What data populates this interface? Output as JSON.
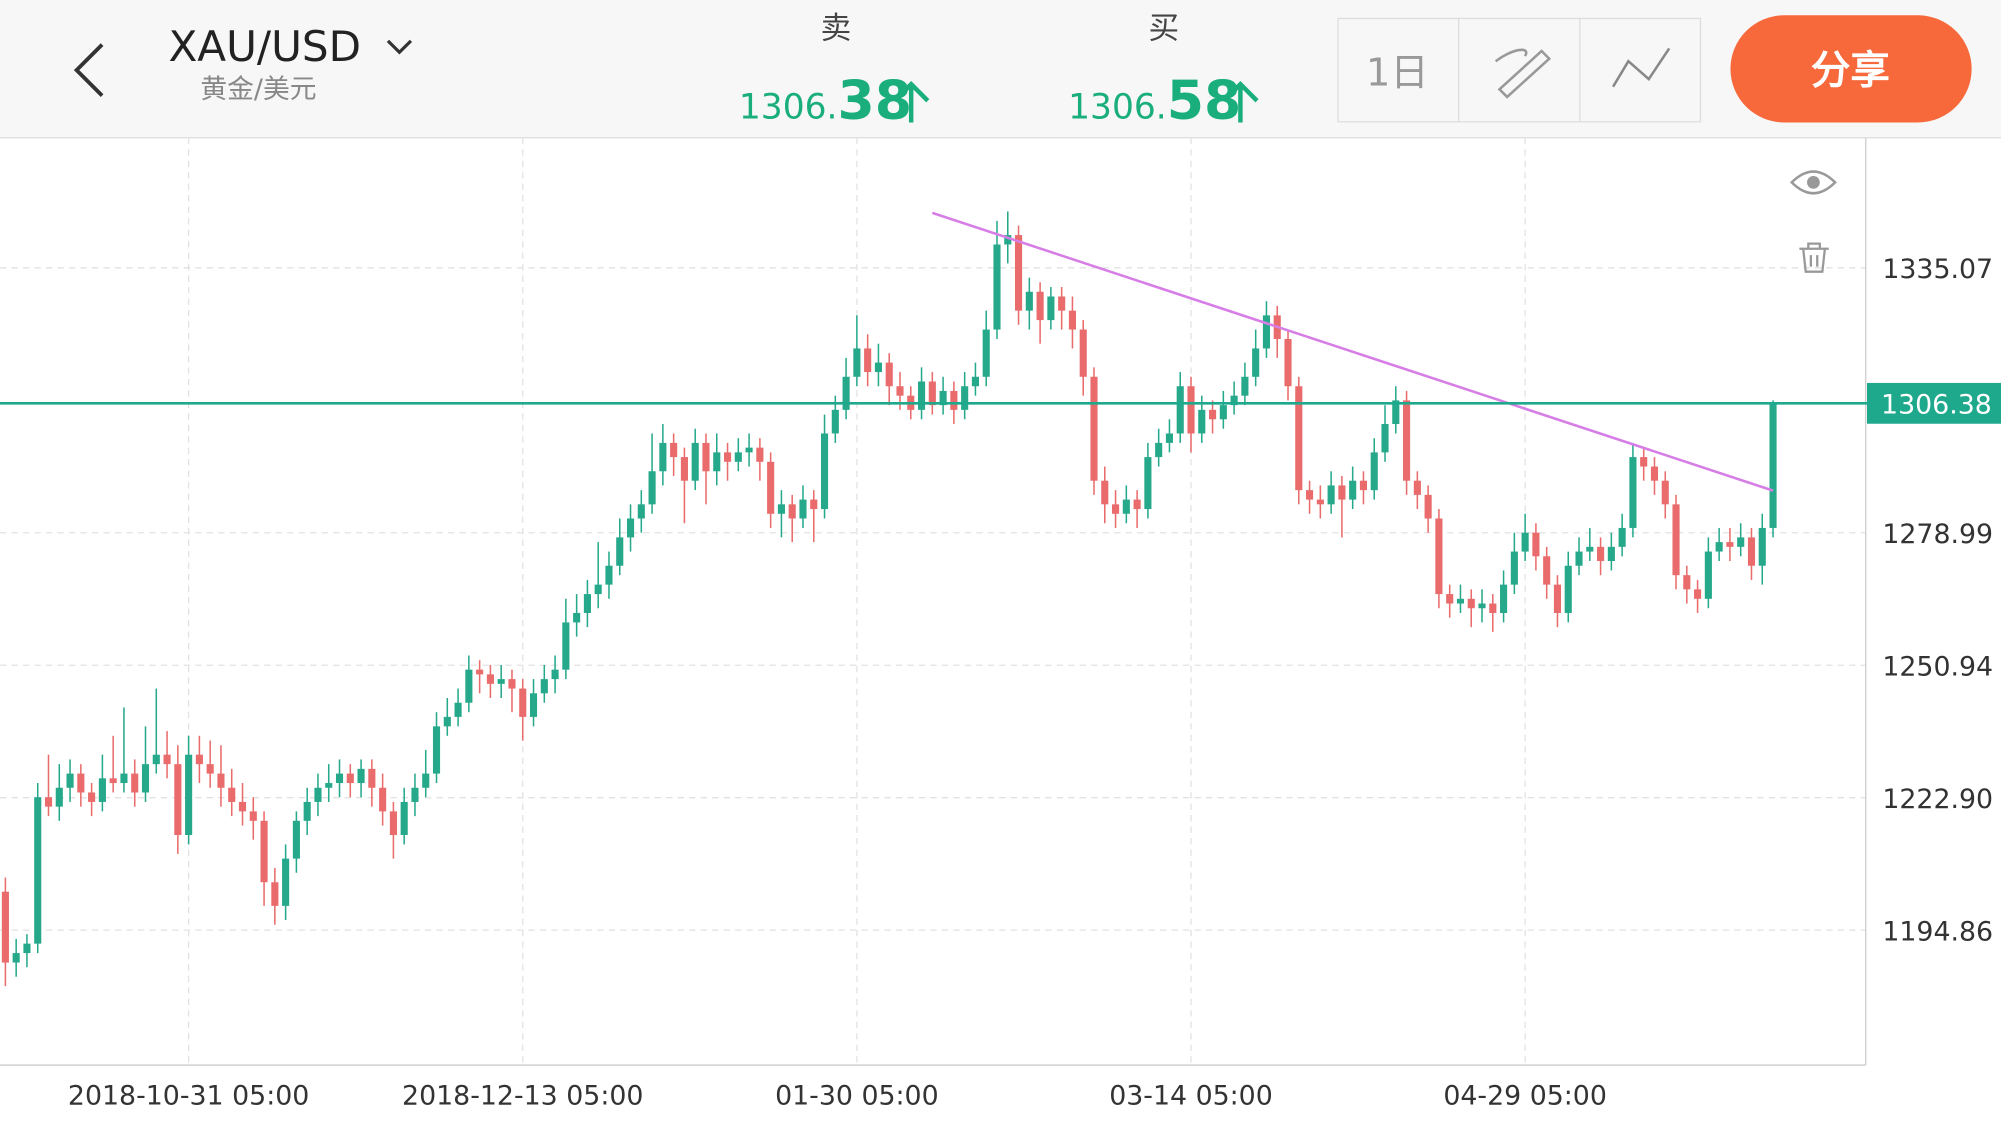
{
  "header": {
    "symbol": "XAU/USD",
    "subtitle": "黄金/美元",
    "sell": {
      "label": "卖",
      "int": "1306.",
      "dec": "38"
    },
    "buy": {
      "label": "买",
      "int": "1306.",
      "dec": "58"
    },
    "period": "1日",
    "share": "分享"
  },
  "chart_data": {
    "type": "candlestick",
    "up_color": "#26a98b",
    "down_color": "#ea6b6b",
    "grid": true,
    "ylim": [
      1166.3,
      1362.6
    ],
    "yticks": [
      1194.86,
      {
        "value": 1222.9,
        "label": "1222.90"
      },
      1250.94,
      1278.99,
      1335.07
    ],
    "xlim": [
      -0.5,
      172.6
    ],
    "xticks": [
      {
        "value": 17,
        "label": "2018-10-31 05:00"
      },
      {
        "value": 48,
        "label": "2018-12-13 05:00"
      },
      {
        "value": 79,
        "label": "01-30 05:00"
      },
      {
        "value": 110,
        "label": "03-14 05:00"
      },
      {
        "value": 141,
        "label": "04-29 05:00"
      }
    ],
    "last_price": 1306.38,
    "last_price_color": "#1fa98c",
    "trendline": {
      "x": [
        86,
        164
      ],
      "y": [
        1346.7,
        1287.9
      ],
      "color": "#d77ee6"
    },
    "candles": [
      [
        1203,
        1206,
        1183,
        1188
      ],
      [
        1188,
        1193,
        1185,
        1190
      ],
      [
        1190,
        1194,
        1187,
        1192
      ],
      [
        1192,
        1226,
        1190,
        1223
      ],
      [
        1223,
        1232,
        1219,
        1221
      ],
      [
        1221,
        1230,
        1218,
        1225
      ],
      [
        1225,
        1231,
        1222,
        1228
      ],
      [
        1228,
        1230,
        1221,
        1224
      ],
      [
        1224,
        1226,
        1219,
        1222
      ],
      [
        1222,
        1232,
        1220,
        1227
      ],
      [
        1227,
        1236,
        1224,
        1226
      ],
      [
        1226,
        1242,
        1224,
        1228
      ],
      [
        1228,
        1231,
        1221,
        1224
      ],
      [
        1224,
        1238,
        1222,
        1230
      ],
      [
        1230,
        1246,
        1228,
        1232
      ],
      [
        1232,
        1237,
        1227,
        1230
      ],
      [
        1230,
        1234,
        1211,
        1215
      ],
      [
        1215,
        1236,
        1213,
        1232
      ],
      [
        1232,
        1236,
        1226,
        1230
      ],
      [
        1230,
        1235,
        1225,
        1228
      ],
      [
        1228,
        1234,
        1221,
        1225
      ],
      [
        1225,
        1229,
        1219,
        1222
      ],
      [
        1222,
        1226,
        1217,
        1220
      ],
      [
        1220,
        1223,
        1214,
        1218
      ],
      [
        1218,
        1220,
        1200,
        1205
      ],
      [
        1205,
        1208,
        1196,
        1200
      ],
      [
        1200,
        1213,
        1197,
        1210
      ],
      [
        1210,
        1220,
        1207,
        1218
      ],
      [
        1218,
        1225,
        1215,
        1222
      ],
      [
        1222,
        1228,
        1219,
        1225
      ],
      [
        1225,
        1230,
        1222,
        1226
      ],
      [
        1226,
        1231,
        1223,
        1228
      ],
      [
        1228,
        1230,
        1223,
        1226
      ],
      [
        1226,
        1231,
        1223,
        1229
      ],
      [
        1229,
        1231,
        1221,
        1225
      ],
      [
        1225,
        1228,
        1217,
        1220
      ],
      [
        1220,
        1222,
        1210,
        1215
      ],
      [
        1215,
        1225,
        1213,
        1222
      ],
      [
        1222,
        1228,
        1219,
        1225
      ],
      [
        1225,
        1233,
        1223,
        1228
      ],
      [
        1228,
        1241,
        1226,
        1238
      ],
      [
        1238,
        1244,
        1236,
        1240
      ],
      [
        1240,
        1246,
        1238,
        1243
      ],
      [
        1243,
        1253,
        1241,
        1250
      ],
      [
        1250,
        1252,
        1245,
        1249
      ],
      [
        1249,
        1251,
        1244,
        1247
      ],
      [
        1247,
        1251,
        1244,
        1248
      ],
      [
        1248,
        1250,
        1241,
        1246
      ],
      [
        1246,
        1248,
        1235,
        1240
      ],
      [
        1240,
        1248,
        1238,
        1245
      ],
      [
        1245,
        1251,
        1243,
        1248
      ],
      [
        1248,
        1253,
        1245,
        1250
      ],
      [
        1250,
        1265,
        1248,
        1260
      ],
      [
        1260,
        1266,
        1257,
        1262
      ],
      [
        1262,
        1269,
        1259,
        1266
      ],
      [
        1266,
        1277,
        1263,
        1268
      ],
      [
        1268,
        1275,
        1265,
        1272
      ],
      [
        1272,
        1282,
        1270,
        1278
      ],
      [
        1278,
        1285,
        1275,
        1282
      ],
      [
        1282,
        1288,
        1279,
        1285
      ],
      [
        1285,
        1300,
        1283,
        1292
      ],
      [
        1292,
        1302,
        1289,
        1298
      ],
      [
        1298,
        1300,
        1291,
        1295
      ],
      [
        1295,
        1297,
        1281,
        1290
      ],
      [
        1290,
        1301,
        1288,
        1298
      ],
      [
        1298,
        1300,
        1285,
        1292
      ],
      [
        1292,
        1300,
        1289,
        1296
      ],
      [
        1296,
        1298,
        1290,
        1294
      ],
      [
        1294,
        1299,
        1292,
        1296
      ],
      [
        1296,
        1300,
        1293,
        1297
      ],
      [
        1297,
        1299,
        1290,
        1294
      ],
      [
        1294,
        1296,
        1280,
        1283
      ],
      [
        1283,
        1288,
        1278,
        1285
      ],
      [
        1285,
        1287,
        1277,
        1282
      ],
      [
        1282,
        1289,
        1280,
        1286
      ],
      [
        1286,
        1288,
        1277,
        1284
      ],
      [
        1284,
        1304,
        1282,
        1300
      ],
      [
        1300,
        1308,
        1298,
        1305
      ],
      [
        1305,
        1316,
        1303,
        1312
      ],
      [
        1312,
        1325,
        1310,
        1318
      ],
      [
        1318,
        1321,
        1310,
        1313
      ],
      [
        1313,
        1319,
        1310,
        1315
      ],
      [
        1315,
        1317,
        1306,
        1310
      ],
      [
        1310,
        1313,
        1305,
        1308
      ],
      [
        1308,
        1310,
        1303,
        1305
      ],
      [
        1305,
        1314,
        1303,
        1311
      ],
      [
        1311,
        1313,
        1304,
        1306
      ],
      [
        1306,
        1312,
        1304,
        1309
      ],
      [
        1309,
        1311,
        1302,
        1305
      ],
      [
        1305,
        1313,
        1303,
        1310
      ],
      [
        1310,
        1315,
        1308,
        1312
      ],
      [
        1312,
        1326,
        1310,
        1322
      ],
      [
        1322,
        1345,
        1320,
        1340
      ],
      [
        1340,
        1347,
        1336,
        1342
      ],
      [
        1342,
        1344,
        1323,
        1326
      ],
      [
        1326,
        1333,
        1322,
        1330
      ],
      [
        1330,
        1332,
        1319,
        1324
      ],
      [
        1324,
        1331,
        1322,
        1329
      ],
      [
        1329,
        1331,
        1322,
        1326
      ],
      [
        1326,
        1329,
        1318,
        1322
      ],
      [
        1322,
        1324,
        1308,
        1312
      ],
      [
        1312,
        1314,
        1287,
        1290
      ],
      [
        1290,
        1293,
        1281,
        1285
      ],
      [
        1285,
        1288,
        1280,
        1283
      ],
      [
        1283,
        1289,
        1281,
        1286
      ],
      [
        1286,
        1288,
        1280,
        1284
      ],
      [
        1284,
        1298,
        1282,
        1295
      ],
      [
        1295,
        1301,
        1293,
        1298
      ],
      [
        1298,
        1303,
        1296,
        1300
      ],
      [
        1300,
        1313,
        1298,
        1310
      ],
      [
        1310,
        1312,
        1296,
        1300
      ],
      [
        1300,
        1308,
        1298,
        1305
      ],
      [
        1305,
        1307,
        1300,
        1303
      ],
      [
        1303,
        1309,
        1301,
        1306
      ],
      [
        1306,
        1311,
        1304,
        1308
      ],
      [
        1308,
        1315,
        1306,
        1312
      ],
      [
        1312,
        1322,
        1310,
        1318
      ],
      [
        1318,
        1328,
        1316,
        1325
      ],
      [
        1325,
        1327,
        1316,
        1320
      ],
      [
        1320,
        1322,
        1307,
        1310
      ],
      [
        1310,
        1312,
        1285,
        1288
      ],
      [
        1288,
        1290,
        1283,
        1286
      ],
      [
        1286,
        1289,
        1282,
        1285
      ],
      [
        1285,
        1292,
        1283,
        1289
      ],
      [
        1289,
        1291,
        1278,
        1286
      ],
      [
        1286,
        1293,
        1284,
        1290
      ],
      [
        1290,
        1292,
        1285,
        1288
      ],
      [
        1288,
        1299,
        1286,
        1296
      ],
      [
        1296,
        1306,
        1294,
        1302
      ],
      [
        1302,
        1310,
        1300,
        1307
      ],
      [
        1307,
        1309,
        1287,
        1290
      ],
      [
        1290,
        1292,
        1284,
        1287
      ],
      [
        1287,
        1289,
        1279,
        1282
      ],
      [
        1282,
        1284,
        1263,
        1266
      ],
      [
        1266,
        1268,
        1261,
        1264
      ],
      [
        1264,
        1268,
        1262,
        1265
      ],
      [
        1265,
        1267,
        1259,
        1263
      ],
      [
        1263,
        1267,
        1260,
        1264
      ],
      [
        1264,
        1266,
        1258,
        1262
      ],
      [
        1262,
        1271,
        1260,
        1268
      ],
      [
        1268,
        1279,
        1266,
        1275
      ],
      [
        1275,
        1283,
        1273,
        1279
      ],
      [
        1279,
        1281,
        1271,
        1274
      ],
      [
        1274,
        1276,
        1265,
        1268
      ],
      [
        1268,
        1270,
        1259,
        1262
      ],
      [
        1262,
        1275,
        1260,
        1272
      ],
      [
        1272,
        1278,
        1270,
        1275
      ],
      [
        1275,
        1280,
        1273,
        1276
      ],
      [
        1276,
        1278,
        1270,
        1273
      ],
      [
        1273,
        1279,
        1271,
        1276
      ],
      [
        1276,
        1283,
        1274,
        1280
      ],
      [
        1280,
        1298,
        1278,
        1295
      ],
      [
        1295,
        1297,
        1290,
        1293
      ],
      [
        1293,
        1295,
        1287,
        1290
      ],
      [
        1290,
        1292,
        1282,
        1285
      ],
      [
        1285,
        1287,
        1267,
        1270
      ],
      [
        1270,
        1272,
        1264,
        1267
      ],
      [
        1267,
        1269,
        1262,
        1265
      ],
      [
        1265,
        1278,
        1263,
        1275
      ],
      [
        1275,
        1280,
        1273,
        1277
      ],
      [
        1277,
        1280,
        1273,
        1276
      ],
      [
        1276,
        1281,
        1274,
        1278
      ],
      [
        1278,
        1280,
        1269,
        1272
      ],
      [
        1272,
        1283,
        1268,
        1280
      ],
      [
        1280,
        1307,
        1278,
        1306.38
      ]
    ]
  }
}
